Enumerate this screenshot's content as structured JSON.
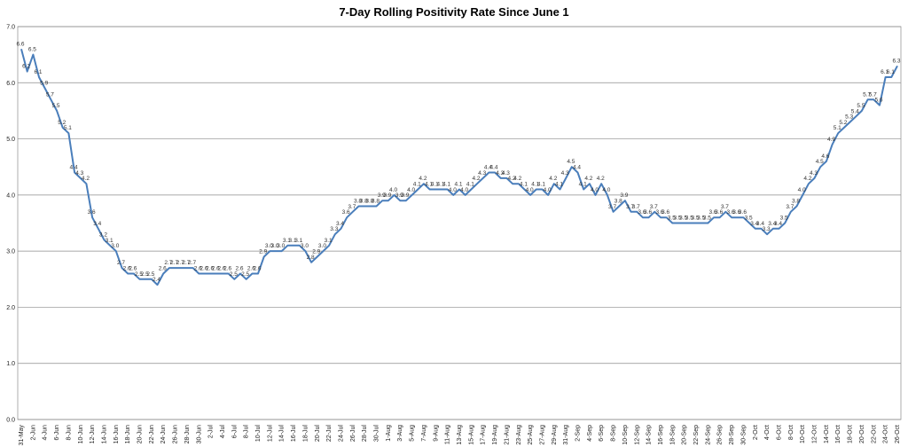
{
  "chart_data": {
    "type": "line",
    "title": "7-Day Rolling Positivity Rate Since June 1",
    "xlabel": "",
    "ylabel": "",
    "ylim": [
      0.0,
      7.0
    ],
    "y_ticks": [
      "0.0",
      "1.0",
      "2.0",
      "3.0",
      "4.0",
      "5.0",
      "6.0",
      "7.0"
    ],
    "grid": "horizontal",
    "legend": "none",
    "line_color": "#4A7EBB",
    "x_tick_labels": [
      "31-May",
      "2-Jun",
      "4-Jun",
      "6-Jun",
      "8-Jun",
      "10-Jun",
      "12-Jun",
      "14-Jun",
      "16-Jun",
      "18-Jun",
      "20-Jun",
      "22-Jun",
      "24-Jun",
      "26-Jun",
      "28-Jun",
      "30-Jun",
      "2-Jul",
      "4-Jul",
      "6-Jul",
      "8-Jul",
      "10-Jul",
      "12-Jul",
      "14-Jul",
      "16-Jul",
      "18-Jul",
      "20-Jul",
      "22-Jul",
      "24-Jul",
      "26-Jul",
      "28-Jul",
      "30-Jul",
      "1-Aug",
      "3-Aug",
      "5-Aug",
      "7-Aug",
      "9-Aug",
      "11-Aug",
      "13-Aug",
      "15-Aug",
      "17-Aug",
      "19-Aug",
      "21-Aug",
      "23-Aug",
      "25-Aug",
      "27-Aug",
      "29-Aug",
      "31-Aug",
      "2-Sep",
      "4-Sep",
      "6-Sep",
      "8-Sep",
      "10-Sep",
      "12-Sep",
      "14-Sep",
      "16-Sep",
      "18-Sep",
      "20-Sep",
      "22-Sep",
      "24-Sep",
      "26-Sep",
      "28-Sep",
      "30-Sep",
      "2-Oct",
      "4-Oct",
      "6-Oct",
      "8-Oct",
      "10-Oct",
      "12-Oct",
      "14-Oct",
      "16-Oct",
      "18-Oct",
      "20-Oct",
      "22-Oct",
      "24-Oct",
      "26-Oct"
    ],
    "series": [
      {
        "values": [
          6.6,
          6.2,
          6.5,
          6.1,
          5.9,
          5.7,
          5.5,
          5.2,
          5.1,
          4.4,
          4.3,
          4.2,
          3.6,
          3.4,
          3.2,
          3.1,
          3.0,
          2.7,
          2.6,
          2.6,
          2.5,
          2.5,
          2.5,
          2.4,
          2.6,
          2.7,
          2.7,
          2.7,
          2.7,
          2.7,
          2.6,
          2.6,
          2.6,
          2.6,
          2.6,
          2.6,
          2.5,
          2.6,
          2.5,
          2.6,
          2.6,
          2.9,
          3.0,
          3.0,
          3.0,
          3.1,
          3.1,
          3.1,
          3.0,
          2.8,
          2.9,
          3.0,
          3.1,
          3.3,
          3.4,
          3.6,
          3.7,
          3.8,
          3.8,
          3.8,
          3.8,
          3.9,
          3.9,
          4.0,
          3.9,
          3.9,
          4.0,
          4.1,
          4.2,
          4.1,
          4.1,
          4.1,
          4.1,
          4.0,
          4.1,
          4.0,
          4.1,
          4.2,
          4.3,
          4.4,
          4.4,
          4.3,
          4.3,
          4.2,
          4.2,
          4.1,
          4.0,
          4.1,
          4.1,
          4.0,
          4.2,
          4.1,
          4.3,
          4.5,
          4.4,
          4.1,
          4.2,
          4.0,
          4.2,
          4.0,
          3.7,
          3.8,
          3.9,
          3.7,
          3.7,
          3.6,
          3.6,
          3.7,
          3.6,
          3.6,
          3.5,
          3.5,
          3.5,
          3.5,
          3.5,
          3.5,
          3.5,
          3.6,
          3.6,
          3.7,
          3.6,
          3.6,
          3.6,
          3.5,
          3.4,
          3.4,
          3.3,
          3.4,
          3.4,
          3.5,
          3.7,
          3.8,
          4.0,
          4.2,
          4.3,
          4.5,
          4.6,
          4.9,
          5.1,
          5.2,
          5.3,
          5.4,
          5.5,
          5.7,
          5.7,
          5.6,
          6.1,
          6.1,
          6.3
        ],
        "labels": [
          "6.6",
          "6.2",
          "6.5",
          "6.1",
          "5.9",
          "5.7",
          "5.5",
          "5.2",
          "5.1",
          "4.4",
          "4.3",
          "4.2",
          "3.6",
          "3.4",
          "3.2",
          "3.1",
          "3.0",
          "2.7",
          "2.6",
          "2.6",
          "2.5",
          "2.5",
          "2.5",
          "2.4",
          "2.6",
          "2.7",
          "2.7",
          "2.7",
          "2.7",
          "2.7",
          "2.6",
          "2.6",
          "2.6",
          "2.6",
          "2.6",
          "2.6",
          "2.5",
          "2.6",
          "2.5",
          "2.6",
          "2.6",
          "2.9",
          "3.0",
          "3.0",
          "3.0",
          "3.1",
          "3.1",
          "3.1",
          "3.0",
          "2.8",
          "2.9",
          "3.0",
          "3.1",
          "3.3",
          "3.4",
          "3.6",
          "3.7",
          "3.8",
          "3.8",
          "3.8",
          "3.8",
          "3.9",
          "3.9",
          "4.0",
          "3.9",
          "3.9",
          "4.0",
          "4.1",
          "4.2",
          "4.1",
          "4.1",
          "4.1",
          "4.1",
          "4.0",
          "4.1",
          "4.0",
          "4.1",
          "4.2",
          "4.3",
          "4.4",
          "4.4",
          "4.3",
          "4.3",
          "4.2",
          "4.2",
          "4.1",
          "4.0",
          "4.1",
          "4.1",
          "4.0",
          "4.2",
          "4.1",
          "4.3",
          "4.5",
          "4.4",
          "4.1",
          "4.2",
          "4.0",
          "4.2",
          "4.0",
          "3.7",
          "3.8",
          "3.9",
          "3.7",
          "3.7",
          "3.6",
          "3.6",
          "3.7",
          "3.6",
          "3.6",
          "3.5",
          "3.5",
          "3.5",
          "3.5",
          "3.5",
          "3.5",
          "3.5",
          "3.6",
          "3.6",
          "3.7",
          "3.6",
          "3.6",
          "3.6",
          "3.5",
          "3.4",
          "3.4",
          "3.3",
          "3.4",
          "3.4",
          "3.5",
          "3.7",
          "3.8",
          "4.0",
          "4.2",
          "4.3",
          "4.5",
          "4.6",
          "4.9",
          "5.1",
          "5.2",
          "5.3",
          "5.4",
          "5.5",
          "5.7",
          "5.7",
          "5.6",
          "6.1",
          "6.1",
          "6.3"
        ]
      }
    ]
  }
}
